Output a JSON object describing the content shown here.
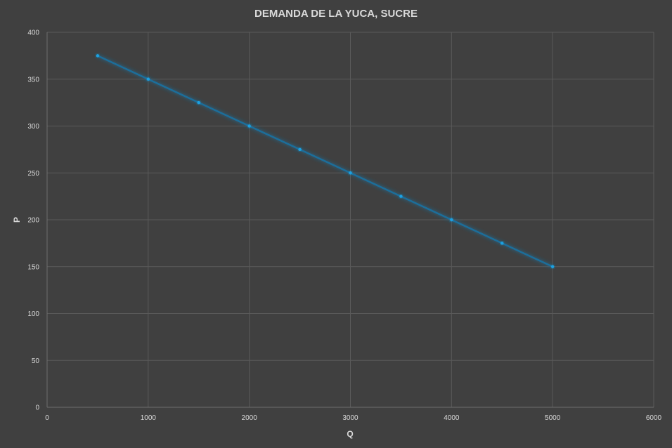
{
  "chart_data": {
    "type": "scatter",
    "title": "DEMANDA DE LA YUCA, SUCRE",
    "xlabel": "Q",
    "ylabel": "P",
    "xlim": [
      0,
      6000
    ],
    "ylim": [
      0,
      400
    ],
    "x_ticks": [
      0,
      1000,
      2000,
      3000,
      4000,
      5000,
      6000
    ],
    "y_ticks": [
      0,
      50,
      100,
      150,
      200,
      250,
      300,
      350,
      400
    ],
    "grid": true,
    "legend": "none",
    "connected": true,
    "series": [
      {
        "color": "#1ba1e2",
        "line_color": "#1f6e9a",
        "x": [
          500,
          1000,
          1500,
          2000,
          2500,
          3000,
          3500,
          4000,
          4500,
          5000
        ],
        "y": [
          375,
          350,
          325,
          300,
          275,
          250,
          225,
          200,
          175,
          150
        ]
      }
    ]
  }
}
